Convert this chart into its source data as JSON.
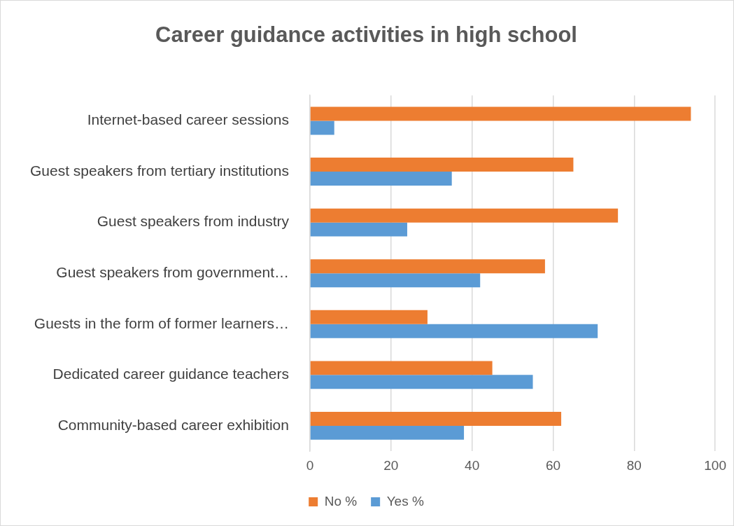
{
  "chart_data": {
    "type": "bar",
    "orientation": "horizontal",
    "title": "Career guidance activities in high school",
    "categories": [
      "Internet-based career sessions",
      "Guest speakers from tertiary institutions",
      "Guest speakers from industry",
      "Guest speakers from government…",
      "Guests in the form of former learners…",
      "Dedicated career guidance teachers",
      "Community-based career exhibition"
    ],
    "series": [
      {
        "name": "No %",
        "color": "#ed7d31",
        "values": [
          94,
          65,
          76,
          58,
          29,
          45,
          62
        ]
      },
      {
        "name": "Yes %",
        "color": "#5b9bd5",
        "values": [
          6,
          35,
          24,
          42,
          71,
          55,
          38
        ]
      }
    ],
    "xlim": [
      0,
      100
    ],
    "xticks": [
      0,
      20,
      40,
      60,
      80,
      100
    ],
    "grid": "x",
    "legend": "bottom"
  }
}
